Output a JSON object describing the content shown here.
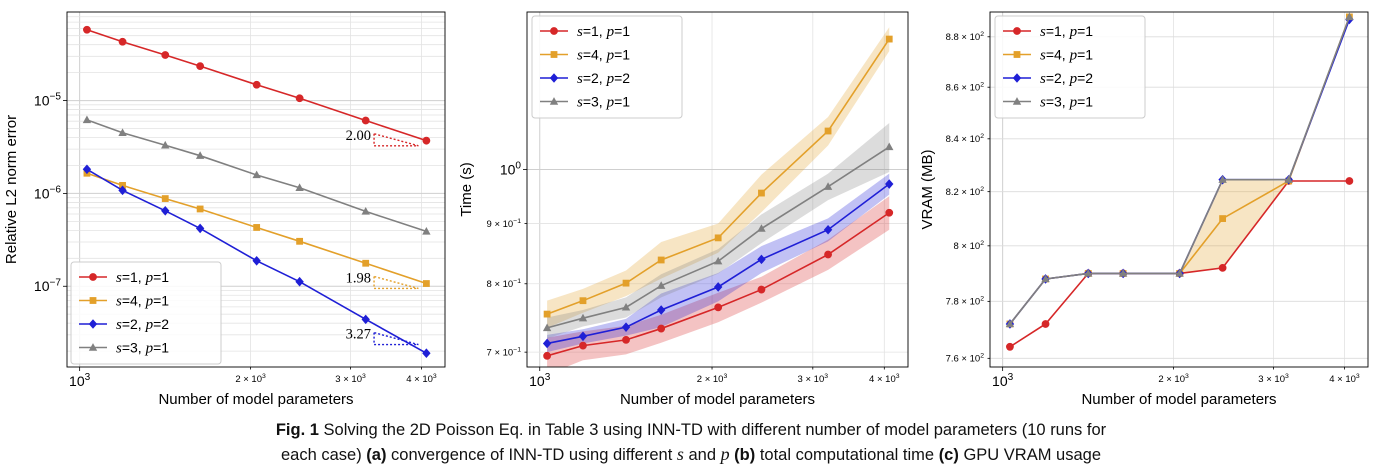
{
  "chart_data": [
    {
      "type": "line",
      "scale": "log-log",
      "xlabel": "Number of model parameters",
      "ylabel": "Relative L2 norm error",
      "x": [
        1030,
        1190,
        1415,
        1630,
        2050,
        2440,
        3190,
        4080
      ],
      "xlim": [
        950,
        4400
      ],
      "ylim": [
        1.35e-08,
        9e-05
      ],
      "xticks": [
        {
          "v": 1000,
          "m": "10",
          "e": "3",
          "big": true
        },
        {
          "v": 2000,
          "m": "2 × 10",
          "e": "3",
          "big": false
        },
        {
          "v": 3000,
          "m": "3 × 10",
          "e": "3",
          "big": false
        },
        {
          "v": 4000,
          "m": "4 × 10",
          "e": "3",
          "big": false
        }
      ],
      "yticks": [
        {
          "v": 1e-07,
          "m": "10",
          "e": "−7",
          "big": true
        },
        {
          "v": 1e-06,
          "m": "10",
          "e": "−6",
          "big": true
        },
        {
          "v": 1e-05,
          "m": "10",
          "e": "−5",
          "big": true
        }
      ],
      "grid": "major+minor",
      "legend_position": "lower-left",
      "series": [
        {
          "name": "s=1, p=1",
          "s": "1",
          "p": "1",
          "color": "#d62728",
          "marker": "circle",
          "values": [
            5.8e-05,
            4.3e-05,
            3.1e-05,
            2.35e-05,
            1.48e-05,
            1.06e-05,
            6.1e-06,
            3.7e-06
          ]
        },
        {
          "name": "s=4, p=1",
          "s": "4",
          "p": "1",
          "color": "#e3a02a",
          "marker": "square",
          "values": [
            1.65e-06,
            1.22e-06,
            8.8e-07,
            6.8e-07,
            4.3e-07,
            3.05e-07,
            1.77e-07,
            1.07e-07
          ]
        },
        {
          "name": "s=2, p=2",
          "s": "2",
          "p": "2",
          "color": "#1f1fd6",
          "marker": "diamond",
          "values": [
            1.82e-06,
            1.08e-06,
            6.5e-07,
            4.2e-07,
            1.88e-07,
            1.12e-07,
            4.4e-08,
            1.9e-08
          ]
        },
        {
          "name": "s=3, p=1",
          "s": "3",
          "p": "1",
          "color": "#808080",
          "marker": "triangle",
          "values": [
            6.2e-06,
            4.5e-06,
            3.3e-06,
            2.55e-06,
            1.58e-06,
            1.15e-06,
            6.4e-07,
            3.9e-07
          ]
        }
      ],
      "annotations": [
        {
          "text": "2.00",
          "color": "#d62728",
          "series": 0
        },
        {
          "text": "1.98",
          "color": "#e3a02a",
          "series": 1
        },
        {
          "text": "3.27",
          "color": "#1f1fd6",
          "series": 2
        }
      ]
    },
    {
      "type": "line",
      "scale": "log-log",
      "xlabel": "Number of model parameters",
      "ylabel": "Time (s)",
      "x": [
        1030,
        1190,
        1415,
        1630,
        2050,
        2440,
        3190,
        4080
      ],
      "xlim": [
        950,
        4400
      ],
      "ylim": [
        0.68,
        1.36
      ],
      "xticks": [
        {
          "v": 1000,
          "m": "10",
          "e": "3",
          "big": true
        },
        {
          "v": 2000,
          "m": "2 × 10",
          "e": "3",
          "big": false
        },
        {
          "v": 3000,
          "m": "3 × 10",
          "e": "3",
          "big": false
        },
        {
          "v": 4000,
          "m": "4 × 10",
          "e": "3",
          "big": false
        }
      ],
      "yticks": [
        {
          "v": 0.7,
          "m": "7 × 10",
          "e": "−1",
          "big": false
        },
        {
          "v": 0.8,
          "m": "8 × 10",
          "e": "−1",
          "big": false
        },
        {
          "v": 0.9,
          "m": "9 × 10",
          "e": "−1",
          "big": false
        },
        {
          "v": 1.0,
          "m": "10",
          "e": "0",
          "big": true
        }
      ],
      "grid": "major+minor",
      "legend_position": "top-left",
      "shaded_band": "spread over 10 runs",
      "series": [
        {
          "name": "s=1, p=1",
          "s": "1",
          "p": "1",
          "color": "#d62728",
          "marker": "circle",
          "values": [
            0.695,
            0.709,
            0.717,
            0.733,
            0.764,
            0.791,
            0.847,
            0.919
          ],
          "band": [
            0.025,
            0.02,
            0.02,
            0.02,
            0.022,
            0.02,
            0.025,
            0.03
          ]
        },
        {
          "name": "s=4, p=1",
          "s": "4",
          "p": "1",
          "color": "#e3a02a",
          "marker": "square",
          "values": [
            0.754,
            0.774,
            0.801,
            0.838,
            0.875,
            0.955,
            1.078,
            1.29
          ],
          "band": [
            0.02,
            0.018,
            0.02,
            0.03,
            0.025,
            0.035,
            0.03,
            0.03
          ]
        },
        {
          "name": "s=2, p=2",
          "s": "2",
          "p": "2",
          "color": "#1f1fd6",
          "marker": "diamond",
          "values": [
            0.712,
            0.722,
            0.735,
            0.76,
            0.795,
            0.839,
            0.889,
            0.972
          ],
          "band": [
            0.012,
            0.01,
            0.012,
            0.025,
            0.022,
            0.022,
            0.02,
            0.02
          ]
        },
        {
          "name": "s=3, p=1",
          "s": "3",
          "p": "1",
          "color": "#808080",
          "marker": "triangle",
          "values": [
            0.734,
            0.748,
            0.764,
            0.797,
            0.836,
            0.891,
            0.967,
            1.045
          ],
          "band": [
            0.015,
            0.012,
            0.015,
            0.018,
            0.02,
            0.025,
            0.025,
            0.05
          ]
        }
      ]
    },
    {
      "type": "line",
      "scale": "log-log",
      "xlabel": "Number of model parameters",
      "ylabel": "VRAM (MB)",
      "x": [
        1030,
        1190,
        1415,
        1630,
        2050,
        2440,
        3190,
        4080
      ],
      "xlim": [
        950,
        4400
      ],
      "ylim": [
        757,
        890
      ],
      "xticks": [
        {
          "v": 1000,
          "m": "10",
          "e": "3",
          "big": true
        },
        {
          "v": 2000,
          "m": "2 × 10",
          "e": "3",
          "big": false
        },
        {
          "v": 3000,
          "m": "3 × 10",
          "e": "3",
          "big": false
        },
        {
          "v": 4000,
          "m": "4 × 10",
          "e": "3",
          "big": false
        }
      ],
      "yticks": [
        {
          "v": 760,
          "m": "7.6 × 10",
          "e": "2",
          "big": false
        },
        {
          "v": 780,
          "m": "7.8 × 10",
          "e": "2",
          "big": false
        },
        {
          "v": 800,
          "m": "8 × 10",
          "e": "2",
          "big": false
        },
        {
          "v": 820,
          "m": "8.2 × 10",
          "e": "2",
          "big": false
        },
        {
          "v": 840,
          "m": "8.4 × 10",
          "e": "2",
          "big": false
        },
        {
          "v": 860,
          "m": "8.6 × 10",
          "e": "2",
          "big": false
        },
        {
          "v": 880,
          "m": "8.8 × 10",
          "e": "2",
          "big": false
        }
      ],
      "grid": "major",
      "legend_position": "top-left",
      "shaded_band": "between s=4 min and max",
      "series": [
        {
          "name": "s=1, p=1",
          "s": "1",
          "p": "1",
          "color": "#d62728",
          "marker": "circle",
          "values": [
            764,
            772,
            790,
            790,
            790,
            792,
            824,
            824
          ]
        },
        {
          "name": "s=4, p=1",
          "s": "4",
          "p": "1",
          "color": "#e3a02a",
          "marker": "square",
          "values": [
            772,
            788,
            790,
            790,
            790,
            810,
            824,
            888
          ],
          "band_lo": [
            772,
            788,
            790,
            790,
            790,
            792,
            824,
            888
          ],
          "band_hi": [
            772,
            788,
            790,
            790,
            790,
            824.5,
            824,
            888
          ]
        },
        {
          "name": "s=2, p=2",
          "s": "2",
          "p": "2",
          "color": "#1f1fd6",
          "marker": "diamond",
          "values": [
            772,
            788,
            790,
            790,
            790,
            824.5,
            824.5,
            887
          ]
        },
        {
          "name": "s=3, p=1",
          "s": "3",
          "p": "1",
          "color": "#808080",
          "marker": "triangle",
          "values": [
            772,
            788,
            790,
            790,
            790,
            824.5,
            824.5,
            888
          ]
        }
      ]
    }
  ],
  "caption": {
    "fig_label": "Fig. 1",
    "text1": " Solving the 2D Poisson Eq. in Table 3 using INN-TD with different number of model parameters (10 runs for",
    "text2": "each case) ",
    "a_label": "(a)",
    "text3": " convergence of INN-TD using different ",
    "var_s": "s",
    "text4": " and ",
    "var_p": "p",
    "b_label": " (b)",
    "text5": " total computational time ",
    "c_label": "(c)",
    "text6": " GPU VRAM usage"
  }
}
